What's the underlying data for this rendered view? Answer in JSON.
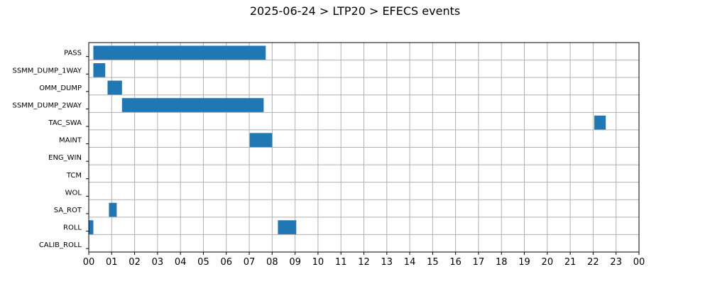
{
  "chart_data": {
    "type": "bar",
    "orientation": "horizontal-gantt",
    "title": "2025-06-24 > LTP20 > EFECS events",
    "xlabel": "",
    "ylabel": "",
    "x_ticks": [
      "00",
      "01",
      "02",
      "03",
      "04",
      "05",
      "06",
      "07",
      "08",
      "09",
      "10",
      "11",
      "12",
      "13",
      "14",
      "15",
      "16",
      "17",
      "18",
      "19",
      "20",
      "21",
      "22",
      "23",
      "00"
    ],
    "xlim_hours": [
      0,
      24
    ],
    "grid": true,
    "bar_color": "#1f77b4",
    "categories": [
      "PASS",
      "SSMM_DUMP_1WAY",
      "OMM_DUMP",
      "SSMM_DUMP_2WAY",
      "TAC_SWA",
      "MAINT",
      "ENG_WIN",
      "TCM",
      "WOL",
      "SA_ROT",
      "ROLL",
      "CALIB_ROLL"
    ],
    "events": [
      {
        "category": "PASS",
        "start": 0.2,
        "end": 7.72
      },
      {
        "category": "SSMM_DUMP_1WAY",
        "start": 0.2,
        "end": 0.72
      },
      {
        "category": "OMM_DUMP",
        "start": 0.82,
        "end": 1.45
      },
      {
        "category": "SSMM_DUMP_2WAY",
        "start": 1.45,
        "end": 7.63
      },
      {
        "category": "TAC_SWA",
        "start": 22.05,
        "end": 22.55
      },
      {
        "category": "MAINT",
        "start": 7.02,
        "end": 8.0
      },
      {
        "category": "SA_ROT",
        "start": 0.88,
        "end": 1.22
      },
      {
        "category": "ROLL",
        "start": 0.0,
        "end": 0.2
      },
      {
        "category": "ROLL",
        "start": 8.25,
        "end": 9.05
      }
    ]
  }
}
